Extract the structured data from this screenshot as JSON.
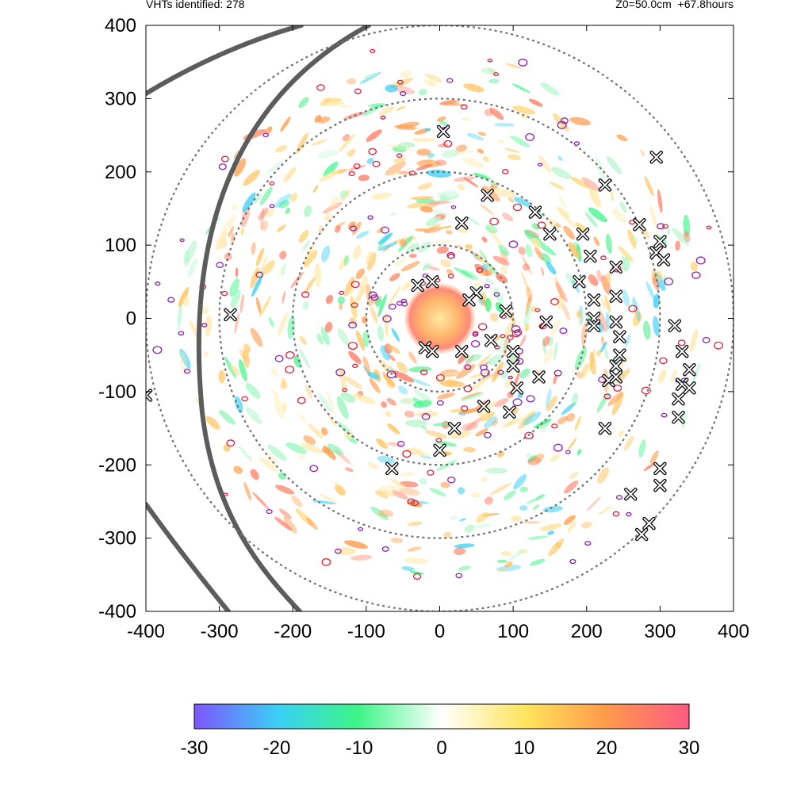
{
  "header": {
    "left_text": "VHTs identified: 278",
    "right_text": "Z0=50.0cm  +67.8hours"
  },
  "chart_data": {
    "type": "heatmap",
    "title": "",
    "xlabel": "",
    "ylabel": "",
    "xlim": [
      -400,
      400
    ],
    "ylim": [
      -400,
      400
    ],
    "x_ticks": [
      "-400",
      "-300",
      "-200",
      "-100",
      "0",
      "100",
      "200",
      "300",
      "400"
    ],
    "y_ticks": [
      "400",
      "300",
      "200",
      "100",
      "0",
      "-100",
      "-200",
      "-300",
      "-400"
    ],
    "range_rings_radius": [
      100,
      200,
      300,
      400
    ],
    "grid": false,
    "colorbar": {
      "min": -30,
      "max": 30,
      "ticks": [
        "-30",
        "-20",
        "-10",
        "0",
        "10",
        "20",
        "30"
      ],
      "colors": [
        "#7d55ff",
        "#3ad0f5",
        "#3cf587",
        "#ffffff",
        "#ffe45c",
        "#ff9b4a",
        "#ff5a82"
      ]
    },
    "vht_markers": [
      [
        5,
        255
      ],
      [
        295,
        220
      ],
      [
        65,
        168
      ],
      [
        225,
        182
      ],
      [
        30,
        130
      ],
      [
        130,
        145
      ],
      [
        272,
        128
      ],
      [
        150,
        115
      ],
      [
        195,
        115
      ],
      [
        300,
        105
      ],
      [
        295,
        90
      ],
      [
        305,
        80
      ],
      [
        205,
        85
      ],
      [
        240,
        70
      ],
      [
        190,
        50
      ],
      [
        -10,
        50
      ],
      [
        -30,
        45
      ],
      [
        50,
        35
      ],
      [
        40,
        25
      ],
      [
        210,
        25
      ],
      [
        240,
        30
      ],
      [
        -285,
        5
      ],
      [
        90,
        10
      ],
      [
        145,
        -5
      ],
      [
        210,
        0
      ],
      [
        240,
        -5
      ],
      [
        320,
        -10
      ],
      [
        210,
        -10
      ],
      [
        70,
        -30
      ],
      [
        245,
        -25
      ],
      [
        -20,
        -40
      ],
      [
        30,
        -45
      ],
      [
        -10,
        -45
      ],
      [
        100,
        -45
      ],
      [
        330,
        -45
      ],
      [
        245,
        -50
      ],
      [
        240,
        -65
      ],
      [
        100,
        -65
      ],
      [
        340,
        -70
      ],
      [
        135,
        -80
      ],
      [
        230,
        -85
      ],
      [
        240,
        -80
      ],
      [
        330,
        -90
      ],
      [
        340,
        -95
      ],
      [
        105,
        -95
      ],
      [
        325,
        -110
      ],
      [
        60,
        -120
      ],
      [
        95,
        -128
      ],
      [
        325,
        -135
      ],
      [
        20,
        -150
      ],
      [
        225,
        -150
      ],
      [
        0,
        -180
      ],
      [
        -65,
        -205
      ],
      [
        300,
        -205
      ],
      [
        300,
        -228
      ],
      [
        260,
        -240
      ],
      [
        285,
        -280
      ],
      [
        275,
        -295
      ],
      [
        -400,
        -105
      ]
    ],
    "warm_core": {
      "center": [
        0,
        0
      ],
      "radius": 48,
      "peak_value": 20
    }
  }
}
